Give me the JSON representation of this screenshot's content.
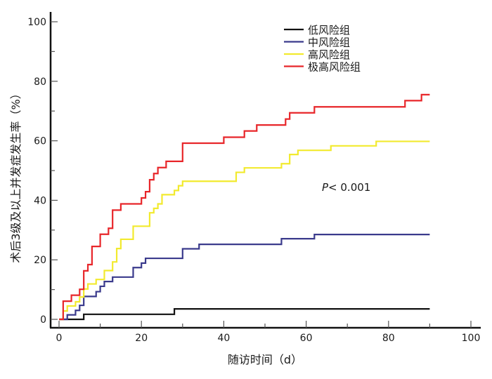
{
  "chart_data": {
    "type": "line",
    "step": true,
    "title": "",
    "xlabel": "随访时间（d）",
    "ylabel": "术后3级及以上并发症发生率（%）",
    "xlim": [
      0,
      100
    ],
    "ylim": [
      0,
      100
    ],
    "xticks": [
      0,
      20,
      40,
      60,
      80,
      100
    ],
    "yticks": [
      0,
      20,
      40,
      60,
      80,
      100
    ],
    "grid": false,
    "legend_position": "top-right",
    "annotation": {
      "italic": "P",
      "text": "< 0.001"
    },
    "series": [
      {
        "name": "低风险组",
        "color": "#111111",
        "end_x": 90,
        "points": [
          [
            0,
            0
          ],
          [
            6,
            1.7
          ],
          [
            28,
            3.5
          ]
        ]
      },
      {
        "name": "中风险组",
        "color": "#3a3a8c",
        "end_x": 90,
        "points": [
          [
            0,
            0
          ],
          [
            2,
            1.5
          ],
          [
            4,
            3.0
          ],
          [
            5,
            4.7
          ],
          [
            6,
            7.7
          ],
          [
            9,
            9.3
          ],
          [
            10,
            11.1
          ],
          [
            11,
            12.7
          ],
          [
            13,
            14.2
          ],
          [
            18,
            17.4
          ],
          [
            20,
            18.9
          ],
          [
            21,
            20.5
          ],
          [
            30,
            23.7
          ],
          [
            34,
            25.2
          ],
          [
            54,
            27.1
          ],
          [
            62,
            28.5
          ]
        ]
      },
      {
        "name": "高风险组",
        "color": "#f2ea2e",
        "end_x": 90,
        "points": [
          [
            0,
            0
          ],
          [
            1,
            2.8
          ],
          [
            2,
            4.5
          ],
          [
            4,
            5.9
          ],
          [
            5,
            7.5
          ],
          [
            6,
            10.2
          ],
          [
            7,
            11.9
          ],
          [
            9,
            13.4
          ],
          [
            11,
            16.4
          ],
          [
            13,
            19.3
          ],
          [
            14,
            23.8
          ],
          [
            15,
            26.9
          ],
          [
            18,
            31.3
          ],
          [
            22,
            35.8
          ],
          [
            23,
            37.3
          ],
          [
            24,
            38.8
          ],
          [
            25,
            41.9
          ],
          [
            28,
            43.3
          ],
          [
            29,
            44.9
          ],
          [
            30,
            46.4
          ],
          [
            43,
            49.4
          ],
          [
            45,
            50.9
          ],
          [
            54,
            52.3
          ],
          [
            56,
            55.4
          ],
          [
            58,
            56.8
          ],
          [
            66,
            58.3
          ],
          [
            77,
            59.8
          ]
        ]
      },
      {
        "name": "极高风险组",
        "color": "#e8262a",
        "end_x": 90,
        "points": [
          [
            0,
            0
          ],
          [
            1,
            6.1
          ],
          [
            3,
            8.1
          ],
          [
            5,
            10.1
          ],
          [
            6,
            16.3
          ],
          [
            7,
            18.4
          ],
          [
            8,
            24.5
          ],
          [
            10,
            28.6
          ],
          [
            12,
            30.6
          ],
          [
            13,
            36.7
          ],
          [
            15,
            38.8
          ],
          [
            20,
            40.8
          ],
          [
            21,
            42.9
          ],
          [
            22,
            46.9
          ],
          [
            23,
            49.0
          ],
          [
            24,
            51.0
          ],
          [
            26,
            53.1
          ],
          [
            30,
            59.2
          ],
          [
            40,
            61.2
          ],
          [
            45,
            63.3
          ],
          [
            48,
            65.3
          ],
          [
            55,
            67.3
          ],
          [
            56,
            69.4
          ],
          [
            62,
            71.4
          ],
          [
            84,
            73.5
          ],
          [
            88,
            75.5
          ]
        ]
      }
    ]
  }
}
